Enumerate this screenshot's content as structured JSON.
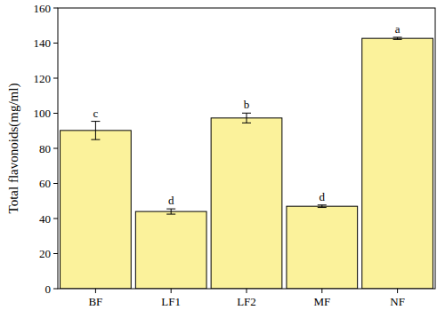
{
  "chart_data": {
    "type": "bar",
    "y_label": "Total flavonoids(mg/ml)",
    "categories": [
      "BF",
      "LF1",
      "LF2",
      "MF",
      "NF"
    ],
    "values": [
      90.2,
      44.0,
      97.3,
      47.0,
      142.7
    ],
    "errors": [
      5.2,
      1.5,
      2.8,
      0.7,
      0.6
    ],
    "annotations": [
      "c",
      "d",
      "b",
      "d",
      "a"
    ],
    "color": "#fbf29b",
    "ylim": [
      0,
      160
    ],
    "yticks": [
      0,
      20,
      40,
      60,
      80,
      100,
      120,
      140,
      160
    ],
    "grid": false
  }
}
